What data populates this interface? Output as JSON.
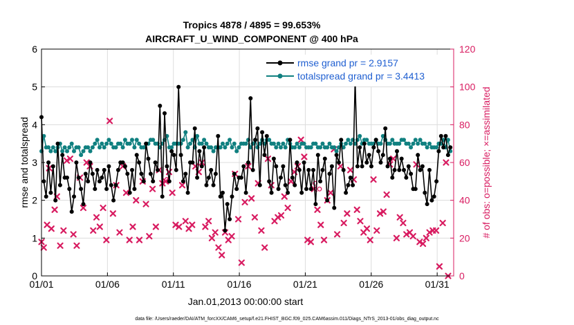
{
  "chart_data": {
    "type": "line",
    "title_line1": "Tropics 4878 / 4895 = 99.653%",
    "title_line2": "AIRCRAFT_U_WIND_COMPONENT @ 400 hPa",
    "xlabel": "Jan.01,2013 00:00:00 start",
    "ylabel_left": "rmse and totalspread",
    "ylabel_right": "# of obs: o=possible; ×=assimilated",
    "footer": "data file: /Users/raeder/DAI/ATM_forcXX/CAM6_setup/f.e21.FHIST_BGC.f09_025.CAM6assim.011/Diags_NTrS_2013-01/obs_diag_output.nc",
    "x_tick_labels": [
      "01/01",
      "01/06",
      "01/11",
      "01/16",
      "01/21",
      "01/26",
      "01/31"
    ],
    "x_tick_days": [
      0,
      5,
      10,
      15,
      20,
      25,
      30
    ],
    "xlim": [
      0,
      31.25
    ],
    "ylim_left": [
      0,
      6
    ],
    "y_ticks_left": [
      "0",
      "1",
      "2",
      "3",
      "4",
      "5",
      "6"
    ],
    "ylim_right": [
      0,
      120
    ],
    "y_ticks_right": [
      "0",
      "20",
      "40",
      "60",
      "80",
      "100",
      "120"
    ],
    "colors": {
      "rmse": "#000000",
      "spread": "#108080",
      "obs": "#d81b60",
      "legend_text": "#1f5fd1",
      "grid": "#dcdcdc"
    },
    "series": [
      {
        "name": "rmse grand pr = 2.9157",
        "axis": "left",
        "values": [
          4.2,
          2.5,
          2.1,
          3.0,
          2.2,
          2.9,
          2.0,
          3.5,
          2.4,
          3.2,
          2.6,
          2.6,
          2.3,
          1.7,
          2.1,
          3.0,
          2.6,
          2.3,
          1.9,
          2.7,
          2.5,
          3.0,
          2.7,
          2.3,
          2.8,
          2.5,
          2.6,
          2.8,
          2.3,
          2.9,
          2.4,
          2.0,
          2.4,
          2.8,
          3.0,
          3.0,
          2.9,
          2.7,
          2.2,
          2.8,
          2.3,
          3.2,
          3.0,
          2.7,
          2.5,
          3.5,
          3.1,
          2.7,
          2.5,
          3.0,
          2.8,
          4.5,
          2.1,
          4.3,
          2.9,
          2.5,
          3.3,
          3.2,
          2.8,
          5.0,
          3.2,
          2.5,
          2.7,
          2.2,
          3.0,
          3.0,
          3.9,
          2.6,
          3.3,
          2.9,
          3.4,
          2.4,
          2.6,
          2.8,
          2.4,
          2.7,
          3.7,
          2.1,
          2.2,
          1.2,
          1.9,
          1.5,
          2.1,
          2.7,
          2.3,
          2.6,
          2.6,
          2.9,
          2.2,
          3.0,
          4.7,
          2.8,
          3.6,
          3.9,
          2.4,
          3.8,
          3.2,
          3.7,
          2.5,
          2.2,
          3.1,
          2.9,
          2.3,
          2.6,
          2.9,
          2.4,
          2.2,
          3.6,
          2.6,
          2.4,
          3.0,
          2.8,
          2.2,
          3.0,
          2.3,
          2.8,
          2.3,
          2.8,
          1.9,
          3.2,
          2.5,
          2.8,
          3.1,
          2.0,
          2.7,
          2.9,
          1.8,
          3.2,
          3.0,
          3.6,
          2.8,
          2.2,
          2.4,
          2.6,
          2.4,
          5.2,
          2.9,
          3.4,
          2.9,
          3.5,
          3.0,
          3.2,
          2.9,
          3.4,
          3.6,
          3.3,
          3.0,
          3.2,
          3.9,
          2.9,
          3.1,
          2.6,
          2.8,
          3.3,
          2.8,
          3.1,
          2.8,
          2.6,
          2.9,
          2.7,
          2.3,
          2.3,
          3.2,
          2.8,
          2.9,
          2.2,
          1.9,
          2.8,
          2.0,
          2.1,
          2.5,
          3.3,
          3.7,
          3.4,
          3.7,
          3.2,
          3.4
        ]
      },
      {
        "name": "totalspread grand pr = 3.4413",
        "axis": "left",
        "values": [
          3.3,
          3.7,
          3.4,
          3.4,
          3.3,
          3.4,
          3.3,
          3.4,
          3.5,
          3.3,
          3.4,
          3.3,
          3.4,
          3.5,
          3.3,
          3.4,
          3.4,
          3.2,
          3.3,
          3.4,
          3.4,
          3.3,
          3.4,
          3.5,
          3.6,
          3.4,
          3.5,
          3.4,
          3.5,
          3.6,
          3.5,
          3.4,
          3.4,
          3.5,
          3.5,
          3.4,
          3.6,
          3.5,
          3.5,
          3.6,
          3.4,
          3.6,
          3.5,
          3.4,
          3.4,
          3.5,
          3.5,
          3.6,
          3.6,
          3.5,
          3.5,
          3.4,
          3.5,
          3.6,
          3.7,
          3.4,
          3.4,
          3.5,
          3.5,
          3.5,
          3.5,
          3.6,
          3.8,
          3.4,
          3.5,
          3.6,
          3.4,
          3.7,
          3.5,
          3.5,
          3.6,
          3.5,
          3.4,
          3.4,
          3.3,
          3.4,
          3.4,
          3.4,
          3.5,
          3.4,
          3.5,
          3.6,
          3.4,
          3.5,
          3.3,
          3.4,
          3.5,
          3.5,
          3.5,
          3.6,
          3.4,
          3.5,
          3.6,
          3.4,
          3.5,
          3.6,
          3.5,
          3.6,
          3.6,
          3.5,
          3.5,
          3.4,
          3.5,
          3.4,
          3.5,
          3.4,
          3.6,
          3.5,
          3.4,
          3.4,
          3.5,
          3.4,
          3.5,
          3.5,
          3.4,
          3.4,
          3.4,
          3.5,
          3.5,
          3.4,
          3.4,
          3.5,
          3.4,
          3.4,
          3.5,
          3.4,
          3.4,
          3.3,
          3.4,
          3.5,
          3.4,
          3.5,
          3.6,
          3.5,
          3.6,
          3.5,
          3.6,
          3.7,
          3.5,
          3.6,
          3.6,
          3.5,
          3.5,
          3.5,
          3.6,
          3.5,
          3.5,
          3.7,
          3.6,
          3.5,
          3.5,
          3.6,
          3.5,
          3.5,
          3.5,
          3.6,
          3.6,
          3.5,
          3.5,
          3.4,
          3.5,
          3.6,
          3.5,
          3.6,
          3.5,
          3.5,
          3.4,
          3.5,
          3.4,
          3.4,
          3.4,
          3.5,
          3.5,
          3.6,
          3.4,
          3.6,
          3.3
        ]
      },
      {
        "name": "obs assimilated",
        "axis": "right",
        "points": [
          [
            0.0,
            18
          ],
          [
            0.17,
            15
          ],
          [
            0.42,
            27
          ],
          [
            0.58,
            57
          ],
          [
            0.75,
            25
          ],
          [
            1.0,
            35
          ],
          [
            1.17,
            42
          ],
          [
            1.42,
            16
          ],
          [
            1.67,
            24
          ],
          [
            1.92,
            61
          ],
          [
            2.17,
            62
          ],
          [
            2.42,
            22
          ],
          [
            2.67,
            16
          ],
          [
            2.92,
            52
          ],
          [
            3.17,
            36
          ],
          [
            3.42,
            60
          ],
          [
            3.67,
            58
          ],
          [
            3.92,
            24
          ],
          [
            4.17,
            31
          ],
          [
            4.42,
            26
          ],
          [
            4.67,
            36
          ],
          [
            4.92,
            19
          ],
          [
            5.17,
            82
          ],
          [
            5.42,
            33
          ],
          [
            5.67,
            48
          ],
          [
            5.92,
            23
          ],
          [
            6.17,
            58
          ],
          [
            6.42,
            44
          ],
          [
            6.67,
            19
          ],
          [
            6.92,
            26
          ],
          [
            7.17,
            40
          ],
          [
            7.42,
            19
          ],
          [
            7.67,
            50
          ],
          [
            7.92,
            38
          ],
          [
            8.17,
            21
          ],
          [
            8.42,
            46
          ],
          [
            8.67,
            26
          ],
          [
            8.92,
            56
          ],
          [
            9.17,
            49
          ],
          [
            9.42,
            50
          ],
          [
            9.67,
            55
          ],
          [
            9.92,
            44
          ],
          [
            10.17,
            27
          ],
          [
            10.42,
            26
          ],
          [
            10.67,
            48
          ],
          [
            10.92,
            29
          ],
          [
            11.17,
            25
          ],
          [
            11.42,
            27
          ],
          [
            11.67,
            58
          ],
          [
            11.92,
            55
          ],
          [
            12.17,
            60
          ],
          [
            12.42,
            26
          ],
          [
            12.67,
            29
          ],
          [
            12.92,
            20
          ],
          [
            13.17,
            23
          ],
          [
            13.42,
            15
          ],
          [
            13.67,
            11
          ],
          [
            13.92,
            23
          ],
          [
            14.17,
            19
          ],
          [
            14.42,
            21
          ],
          [
            14.67,
            54
          ],
          [
            14.92,
            30
          ],
          [
            15.17,
            7
          ],
          [
            15.42,
            39
          ],
          [
            15.67,
            58
          ],
          [
            15.92,
            41
          ],
          [
            16.17,
            31
          ],
          [
            16.42,
            49
          ],
          [
            16.67,
            24
          ],
          [
            16.92,
            15
          ],
          [
            17.17,
            62
          ],
          [
            17.42,
            48
          ],
          [
            17.67,
            29
          ],
          [
            17.92,
            31
          ],
          [
            18.17,
            32
          ],
          [
            18.42,
            42
          ],
          [
            18.67,
            36
          ],
          [
            18.92,
            50
          ],
          [
            19.17,
            55
          ],
          [
            19.42,
            58
          ],
          [
            19.67,
            72
          ],
          [
            19.92,
            63
          ],
          [
            20.17,
            19
          ],
          [
            20.42,
            18
          ],
          [
            20.67,
            46
          ],
          [
            20.92,
            35
          ],
          [
            21.17,
            27
          ],
          [
            21.42,
            19
          ],
          [
            21.67,
            40
          ],
          [
            21.92,
            44
          ],
          [
            22.17,
            67
          ],
          [
            22.42,
            22
          ],
          [
            22.67,
            58
          ],
          [
            22.92,
            28
          ],
          [
            23.17,
            33
          ],
          [
            23.42,
            56
          ],
          [
            23.67,
            51
          ],
          [
            23.92,
            35
          ],
          [
            24.17,
            29
          ],
          [
            24.42,
            23
          ],
          [
            24.67,
            25
          ],
          [
            24.92,
            19
          ],
          [
            25.17,
            51
          ],
          [
            25.42,
            24
          ],
          [
            25.67,
            33
          ],
          [
            25.92,
            34
          ],
          [
            26.17,
            43
          ],
          [
            26.42,
            59
          ],
          [
            26.67,
            62
          ],
          [
            26.92,
            20
          ],
          [
            27.17,
            31
          ],
          [
            27.42,
            28
          ],
          [
            27.67,
            22
          ],
          [
            27.92,
            23
          ],
          [
            28.17,
            21
          ],
          [
            28.42,
            59
          ],
          [
            28.67,
            18
          ],
          [
            28.92,
            17
          ],
          [
            29.17,
            20
          ],
          [
            29.42,
            23
          ],
          [
            29.67,
            24
          ],
          [
            29.92,
            24
          ],
          [
            30.17,
            5
          ],
          [
            30.42,
            28
          ],
          [
            30.67,
            60
          ],
          [
            30.83,
            0
          ]
        ]
      },
      {
        "name": "obs possible",
        "axis": "right",
        "points": [
          [
            9.5,
            51
          ],
          [
            20.75,
            49
          ],
          [
            21.08,
            46
          ]
        ]
      }
    ]
  }
}
